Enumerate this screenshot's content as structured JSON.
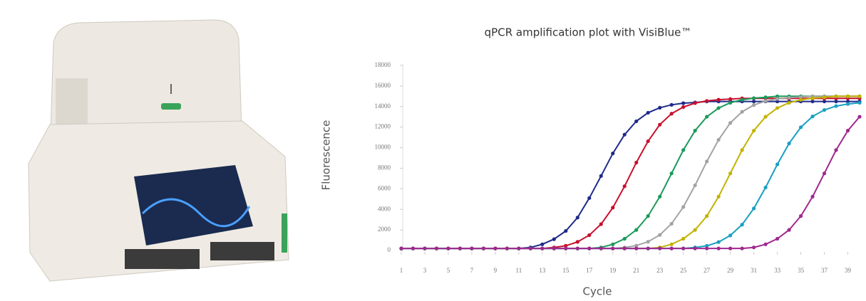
{
  "chart_data": {
    "type": "line",
    "title": "qPCR amplification plot with VisiBlue™",
    "y_label": "Fluorescence",
    "x_label": "Cycle",
    "x": [
      1,
      2,
      3,
      4,
      5,
      6,
      7,
      8,
      9,
      10,
      11,
      12,
      13,
      14,
      15,
      16,
      17,
      18,
      19,
      20,
      21,
      22,
      23,
      24,
      25,
      26,
      27,
      28,
      29,
      30,
      31,
      32,
      33,
      34,
      35,
      36,
      37,
      38,
      39,
      40
    ],
    "xlim": [
      1,
      40
    ],
    "xticks": [
      1,
      3,
      5,
      7,
      9,
      11,
      13,
      15,
      17,
      19,
      21,
      23,
      25,
      27,
      29,
      31,
      33,
      35,
      37,
      39
    ],
    "ylim": [
      0,
      18000
    ],
    "yticks": [
      0,
      2000,
      4000,
      6000,
      8000,
      10000,
      12000,
      14000,
      16000,
      18000
    ],
    "grid": false,
    "series": [
      {
        "color": "#1f2a8a",
        "values": [
          200,
          200,
          200,
          200,
          200,
          200,
          200,
          200,
          200,
          200,
          200,
          300,
          600,
          1100,
          1900,
          3200,
          5100,
          7250,
          9440,
          11270,
          12570,
          13400,
          13890,
          14170,
          14330,
          14400,
          14500,
          14500,
          14500,
          14500,
          14500,
          14500,
          14500,
          14500,
          14500,
          14500,
          14500,
          14500,
          14500,
          14500
        ]
      },
      {
        "color": "#c8102e",
        "values": [
          200,
          200,
          200,
          200,
          200,
          200,
          200,
          200,
          200,
          200,
          200,
          200,
          200,
          300,
          460,
          840,
          1490,
          2560,
          4170,
          6250,
          8550,
          10630,
          12240,
          13310,
          13960,
          14340,
          14550,
          14670,
          14730,
          14800,
          14800,
          14800,
          14800,
          14800,
          14800,
          14800,
          14800,
          14800,
          14800,
          14800
        ]
      },
      {
        "color": "#1a9a5a",
        "values": [
          200,
          200,
          200,
          200,
          200,
          200,
          200,
          200,
          200,
          200,
          200,
          200,
          200,
          200,
          200,
          200,
          200,
          300,
          600,
          1140,
          2000,
          3350,
          5240,
          7500,
          9770,
          11660,
          13010,
          13860,
          14370,
          14660,
          14820,
          14900,
          15000,
          15000,
          15000,
          15000,
          15000,
          15000,
          15000,
          15000
        ]
      },
      {
        "color": "#a3a3a3",
        "values": [
          200,
          200,
          200,
          200,
          200,
          200,
          200,
          200,
          200,
          200,
          200,
          200,
          200,
          200,
          200,
          200,
          200,
          200,
          200,
          300,
          470,
          850,
          1510,
          2600,
          4230,
          6340,
          8660,
          10770,
          12410,
          13490,
          14150,
          14540,
          14750,
          14870,
          14930,
          15000,
          15000,
          15000,
          15000,
          15000
        ]
      },
      {
        "color": "#c2b200",
        "values": [
          200,
          200,
          200,
          200,
          200,
          200,
          200,
          200,
          200,
          200,
          200,
          200,
          200,
          200,
          200,
          200,
          200,
          200,
          200,
          200,
          200,
          200,
          300,
          600,
          1140,
          2000,
          3350,
          5240,
          7500,
          9770,
          11660,
          13010,
          13860,
          14370,
          14660,
          14820,
          14900,
          15000,
          15000,
          15000
        ]
      },
      {
        "color": "#1a9fc0",
        "values": [
          200,
          200,
          200,
          200,
          200,
          200,
          200,
          200,
          200,
          200,
          200,
          200,
          200,
          200,
          200,
          200,
          200,
          200,
          200,
          200,
          200,
          200,
          200,
          200,
          200,
          300,
          450,
          820,
          1460,
          2510,
          4090,
          6130,
          8380,
          10410,
          11990,
          13040,
          13670,
          14050,
          14250,
          14370
        ]
      },
      {
        "color": "#a0288f",
        "values": [
          200,
          200,
          200,
          200,
          200,
          200,
          200,
          200,
          200,
          200,
          200,
          200,
          200,
          200,
          200,
          200,
          200,
          200,
          200,
          200,
          200,
          200,
          200,
          200,
          200,
          200,
          200,
          200,
          200,
          200,
          300,
          600,
          1140,
          2000,
          3350,
          5240,
          7500,
          9770,
          11660,
          13010
        ]
      }
    ]
  }
}
